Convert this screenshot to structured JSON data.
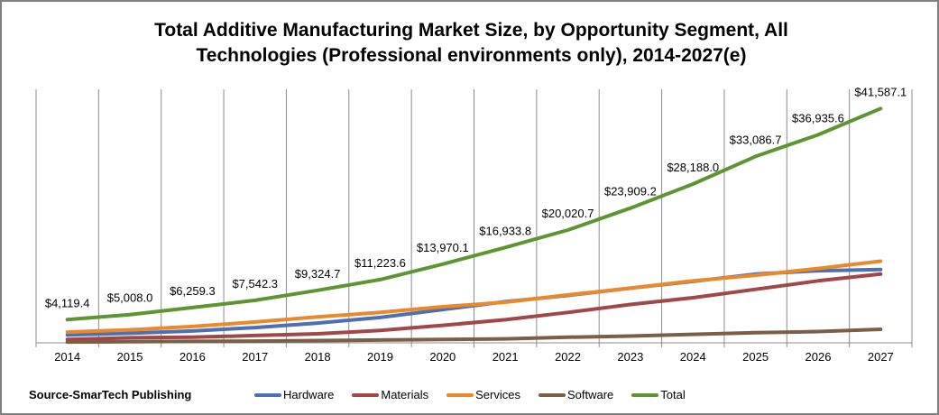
{
  "chart_data": {
    "type": "line",
    "title_line1": "Total Additive Manufacturing Market Size, by Opportunity Segment, All",
    "title_line2": "Technologies (Professional environments only), 2014-2027(e)",
    "categories": [
      "2014",
      "2015",
      "2016",
      "2017",
      "2018",
      "2019",
      "2020",
      "2021",
      "2022",
      "2023",
      "2024",
      "2025",
      "2026",
      "2027"
    ],
    "ylim": [
      0,
      45000
    ],
    "series": [
      {
        "name": "Hardware",
        "color": "#4f6fb5",
        "values": [
          1400,
          1700,
          2100,
          2700,
          3500,
          4500,
          5900,
          7300,
          8400,
          9700,
          10900,
          12200,
          12800,
          13000
        ]
      },
      {
        "name": "Materials",
        "color": "#a04747",
        "values": [
          600,
          900,
          1000,
          1300,
          1600,
          2200,
          3100,
          4100,
          5400,
          6800,
          8000,
          9500,
          11000,
          12200
        ]
      },
      {
        "name": "Services",
        "color": "#e9892c",
        "values": [
          1900,
          2300,
          2900,
          3700,
          4600,
          5400,
          6400,
          7200,
          8500,
          9700,
          11000,
          12000,
          13200,
          14500
        ]
      },
      {
        "name": "Software",
        "color": "#7a5e46",
        "values": [
          150,
          200,
          250,
          300,
          400,
          500,
          600,
          700,
          1000,
          1200,
          1500,
          1800,
          2000,
          2400
        ]
      },
      {
        "name": "Total",
        "color": "#5f9432",
        "values": [
          4119.4,
          5008.0,
          6259.3,
          7542.3,
          9324.7,
          11223.6,
          13970.1,
          16933.8,
          20020.7,
          23909.2,
          28188.0,
          33086.7,
          36935.6,
          41587.1
        ]
      }
    ],
    "data_labels": [
      "$4,119.4",
      "$5,008.0",
      "$6,259.3",
      "$7,542.3",
      "$9,324.7",
      "$11,223.6",
      "$13,970.1",
      "$16,933.8",
      "$20,020.7",
      "$23,909.2",
      "$28,188.0",
      "$33,086.7",
      "$36,935.6",
      "$41,587.1"
    ],
    "grid": "vertical"
  },
  "source": "Source-SmarTech Publishing"
}
